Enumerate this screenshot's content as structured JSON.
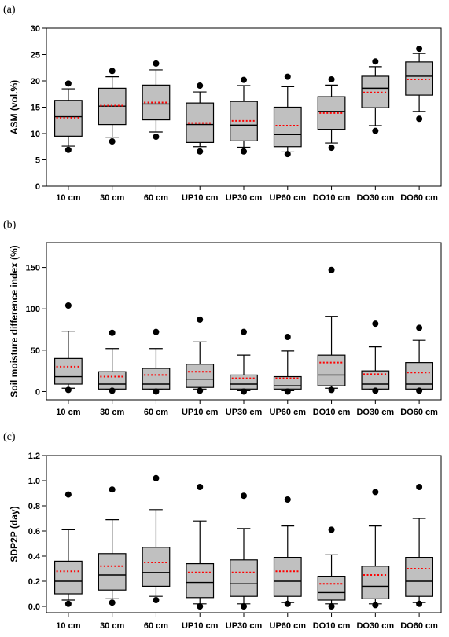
{
  "chart_data": [
    {
      "panel_label": "(a)",
      "type": "boxplot",
      "ylabel": "ASM (vol.%)",
      "ylim": [
        0,
        30
      ],
      "yticks": [
        0,
        5,
        10,
        15,
        20,
        25,
        30
      ],
      "categories": [
        "10 cm",
        "30 cm",
        "60 cm",
        "UP10 cm",
        "UP30 cm",
        "UP60 cm",
        "DO10 cm",
        "DO30 cm",
        "DO60 cm"
      ],
      "boxes": [
        {
          "min": 7.6,
          "q1": 9.5,
          "median": 13.2,
          "q3": 16.3,
          "max": 18.5,
          "mean": 13.0,
          "outliers": [
            19.5,
            6.9
          ]
        },
        {
          "min": 9.3,
          "q1": 11.7,
          "median": 15.2,
          "q3": 18.6,
          "max": 20.8,
          "mean": 15.3,
          "outliers": [
            21.9,
            8.5
          ]
        },
        {
          "min": 10.3,
          "q1": 12.6,
          "median": 15.6,
          "q3": 19.2,
          "max": 22.1,
          "mean": 15.9,
          "outliers": [
            23.3,
            9.4
          ]
        },
        {
          "min": 7.5,
          "q1": 8.3,
          "median": 11.7,
          "q3": 15.8,
          "max": 17.9,
          "mean": 12.0,
          "outliers": [
            19.1,
            6.6
          ]
        },
        {
          "min": 7.4,
          "q1": 8.6,
          "median": 11.6,
          "q3": 16.1,
          "max": 19.1,
          "mean": 12.4,
          "outliers": [
            20.2,
            6.6
          ]
        },
        {
          "min": 6.5,
          "q1": 7.5,
          "median": 9.8,
          "q3": 15.0,
          "max": 18.9,
          "mean": 11.5,
          "outliers": [
            20.8,
            6.1
          ]
        },
        {
          "min": 8.2,
          "q1": 10.8,
          "median": 14.2,
          "q3": 17.0,
          "max": 19.2,
          "mean": 13.9,
          "outliers": [
            20.3,
            7.3
          ]
        },
        {
          "min": 11.5,
          "q1": 14.9,
          "median": 18.6,
          "q3": 20.9,
          "max": 22.7,
          "mean": 17.8,
          "outliers": [
            23.7,
            10.5
          ]
        },
        {
          "min": 14.2,
          "q1": 17.3,
          "median": 20.9,
          "q3": 23.6,
          "max": 25.2,
          "mean": 20.3,
          "outliers": [
            26.1,
            12.8
          ]
        }
      ]
    },
    {
      "panel_label": "(b)",
      "type": "boxplot",
      "ylabel": "Soil moisture difference index (%)",
      "ylim": [
        -10,
        180
      ],
      "yticks": [
        0,
        50,
        100,
        150
      ],
      "categories": [
        "10 cm",
        "30 cm",
        "60 cm",
        "UP10 cm",
        "UP30 cm",
        "UP60 cm",
        "DO10 cm",
        "DO30 cm",
        "DO60 cm"
      ],
      "boxes": [
        {
          "min": 4,
          "q1": 9,
          "median": 18,
          "q3": 40,
          "max": 73,
          "mean": 30,
          "outliers": [
            104,
            2
          ]
        },
        {
          "min": 2,
          "q1": 3,
          "median": 9,
          "q3": 24,
          "max": 52,
          "mean": 18,
          "outliers": [
            71,
            1
          ]
        },
        {
          "min": 2,
          "q1": 3,
          "median": 9,
          "q3": 28,
          "max": 52,
          "mean": 20,
          "outliers": [
            72,
            0
          ]
        },
        {
          "min": 3,
          "q1": 5,
          "median": 15,
          "q3": 33,
          "max": 60,
          "mean": 24,
          "outliers": [
            87,
            1
          ]
        },
        {
          "min": 1,
          "q1": 3,
          "median": 9,
          "q3": 20,
          "max": 44,
          "mean": 16,
          "outliers": [
            72,
            0
          ]
        },
        {
          "min": 1,
          "q1": 3,
          "median": 7,
          "q3": 18,
          "max": 49,
          "mean": 16,
          "outliers": [
            66,
            0
          ]
        },
        {
          "min": 4,
          "q1": 7,
          "median": 20,
          "q3": 44,
          "max": 91,
          "mean": 35,
          "outliers": [
            147,
            2
          ]
        },
        {
          "min": 2,
          "q1": 3,
          "median": 9,
          "q3": 25,
          "max": 54,
          "mean": 21,
          "outliers": [
            82,
            1
          ]
        },
        {
          "min": 2,
          "q1": 3,
          "median": 9,
          "q3": 35,
          "max": 62,
          "mean": 23,
          "outliers": [
            77,
            1
          ]
        }
      ]
    },
    {
      "panel_label": "(c)",
      "type": "boxplot",
      "ylabel": "SDP2P (day)",
      "ylim": [
        -0.05,
        1.2
      ],
      "yticks": [
        0.0,
        0.2,
        0.4,
        0.6,
        0.8,
        1.0,
        1.2
      ],
      "categories": [
        "10 cm",
        "30 cm",
        "60 cm",
        "UP10 cm",
        "UP30 cm",
        "UP60 cm",
        "DO10 cm",
        "DO30 cm",
        "DO60 cm"
      ],
      "boxes": [
        {
          "min": 0.05,
          "q1": 0.1,
          "median": 0.2,
          "q3": 0.36,
          "max": 0.61,
          "mean": 0.28,
          "outliers": [
            0.89,
            0.02
          ]
        },
        {
          "min": 0.06,
          "q1": 0.13,
          "median": 0.25,
          "q3": 0.42,
          "max": 0.69,
          "mean": 0.32,
          "outliers": [
            0.93,
            0.03
          ]
        },
        {
          "min": 0.08,
          "q1": 0.16,
          "median": 0.27,
          "q3": 0.47,
          "max": 0.77,
          "mean": 0.35,
          "outliers": [
            1.02,
            0.05
          ]
        },
        {
          "min": 0.02,
          "q1": 0.07,
          "median": 0.19,
          "q3": 0.34,
          "max": 0.68,
          "mean": 0.27,
          "outliers": [
            0.95,
            0.0
          ]
        },
        {
          "min": 0.02,
          "q1": 0.08,
          "median": 0.18,
          "q3": 0.37,
          "max": 0.62,
          "mean": 0.27,
          "outliers": [
            0.88,
            0.0
          ]
        },
        {
          "min": 0.03,
          "q1": 0.08,
          "median": 0.2,
          "q3": 0.39,
          "max": 0.64,
          "mean": 0.28,
          "outliers": [
            0.85,
            0.02
          ]
        },
        {
          "min": 0.02,
          "q1": 0.05,
          "median": 0.11,
          "q3": 0.24,
          "max": 0.41,
          "mean": 0.18,
          "outliers": [
            0.61,
            0.0
          ]
        },
        {
          "min": 0.02,
          "q1": 0.06,
          "median": 0.16,
          "q3": 0.32,
          "max": 0.64,
          "mean": 0.25,
          "outliers": [
            0.91,
            0.01
          ]
        },
        {
          "min": 0.03,
          "q1": 0.08,
          "median": 0.2,
          "q3": 0.39,
          "max": 0.7,
          "mean": 0.3,
          "outliers": [
            0.95,
            0.02
          ]
        }
      ]
    }
  ],
  "colors": {
    "box_fill": "#c0c0c0",
    "line": "#000000",
    "mean_line": "#ff0000"
  }
}
